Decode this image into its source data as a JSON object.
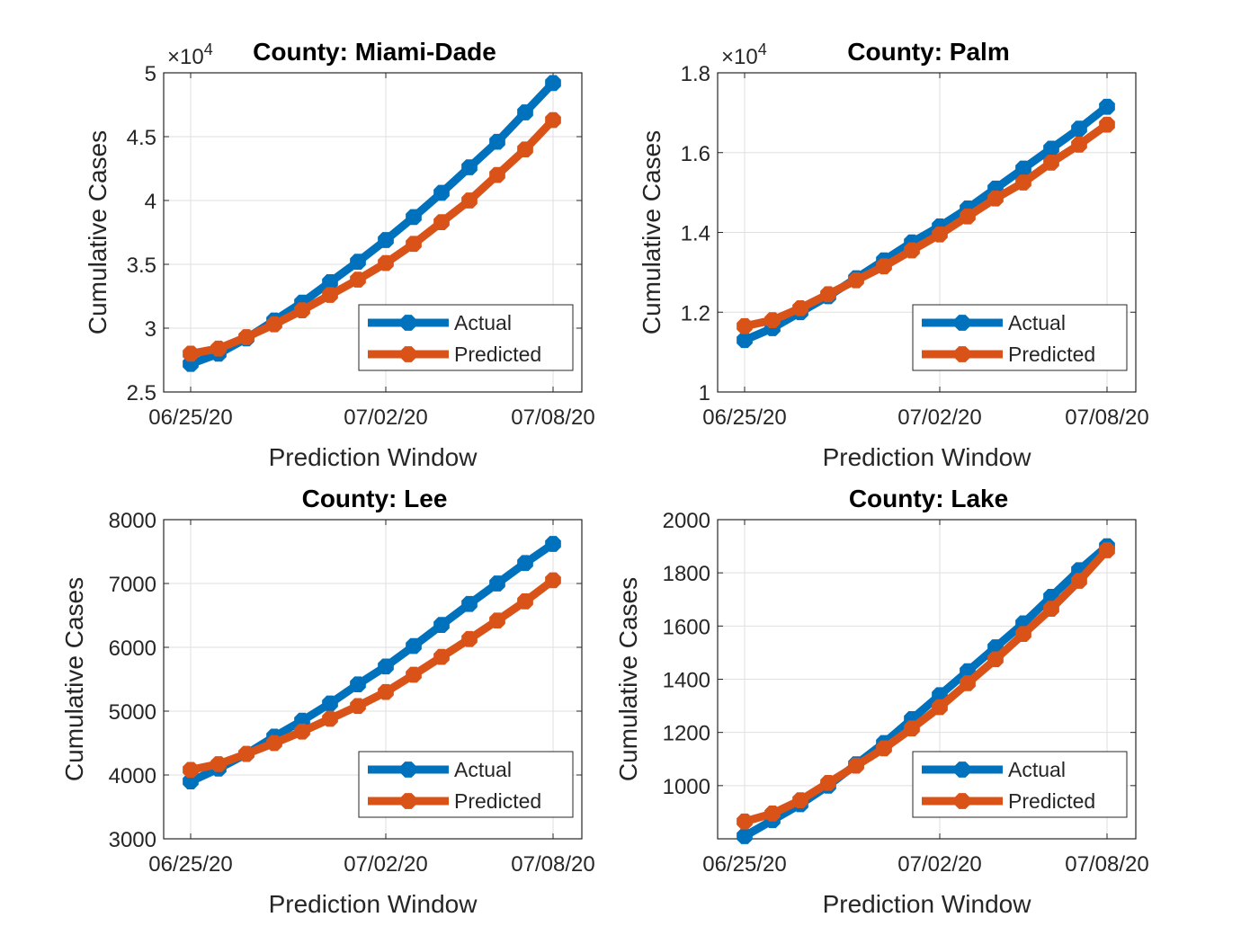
{
  "figure": {
    "xlabel": "Prediction Window",
    "ylabel": "Cumulative Cases"
  },
  "colors": {
    "actual": "#0072BD",
    "predicted": "#D95319",
    "grid": "#DFDFDF",
    "axis": "#262626"
  },
  "chart_data": [
    {
      "type": "line",
      "title": "County: Miami-Dade",
      "xlabel": "Prediction Window",
      "ylabel": "Cumulative Cases",
      "x": [
        "06/25/20",
        "06/26/20",
        "06/27/20",
        "06/28/20",
        "06/29/20",
        "06/30/20",
        "07/01/20",
        "07/02/20",
        "07/03/20",
        "07/04/20",
        "07/05/20",
        "07/06/20",
        "07/07/20",
        "07/08/20"
      ],
      "xticks": [
        "06/25/20",
        "07/02/20",
        "07/08/20"
      ],
      "ylim": [
        25000,
        50000
      ],
      "yticks": [
        25000,
        30000,
        35000,
        40000,
        45000,
        50000
      ],
      "ytick_labels": [
        "2.5",
        "3",
        "3.5",
        "4",
        "4.5",
        "5"
      ],
      "y_exponent_base": "×10",
      "y_exponent_power": "4",
      "grid": true,
      "legend_position": "lower-right",
      "series": [
        {
          "name": "Actual",
          "values": [
            27200,
            28000,
            29200,
            30600,
            32000,
            33600,
            35200,
            36900,
            38700,
            40600,
            42600,
            44600,
            46900,
            49200
          ]
        },
        {
          "name": "Predicted",
          "values": [
            28000,
            28400,
            29300,
            30300,
            31400,
            32600,
            33800,
            35100,
            36600,
            38300,
            40000,
            42000,
            44000,
            46300
          ]
        }
      ]
    },
    {
      "type": "line",
      "title": "County: Palm",
      "xlabel": "Prediction Window",
      "ylabel": "Cumulative Cases",
      "x": [
        "06/25/20",
        "06/26/20",
        "06/27/20",
        "06/28/20",
        "06/29/20",
        "06/30/20",
        "07/01/20",
        "07/02/20",
        "07/03/20",
        "07/04/20",
        "07/05/20",
        "07/06/20",
        "07/07/20",
        "07/08/20"
      ],
      "xticks": [
        "06/25/20",
        "07/02/20",
        "07/08/20"
      ],
      "ylim": [
        10000,
        18000
      ],
      "yticks": [
        10000,
        12000,
        14000,
        16000,
        18000
      ],
      "ytick_labels": [
        "1",
        "1.2",
        "1.4",
        "1.6",
        "1.8"
      ],
      "y_exponent_base": "×10",
      "y_exponent_power": "4",
      "grid": true,
      "legend_position": "lower-right",
      "series": [
        {
          "name": "Actual",
          "values": [
            11300,
            11600,
            12000,
            12400,
            12850,
            13300,
            13750,
            14150,
            14600,
            15100,
            15600,
            16100,
            16600,
            17150
          ]
        },
        {
          "name": "Predicted",
          "values": [
            11650,
            11800,
            12100,
            12450,
            12800,
            13150,
            13550,
            13950,
            14400,
            14850,
            15250,
            15750,
            16200,
            16700
          ]
        }
      ]
    },
    {
      "type": "line",
      "title": "County: Lee",
      "xlabel": "Prediction Window",
      "ylabel": "Cumulative Cases",
      "x": [
        "06/25/20",
        "06/26/20",
        "06/27/20",
        "06/28/20",
        "06/29/20",
        "06/30/20",
        "07/01/20",
        "07/02/20",
        "07/03/20",
        "07/04/20",
        "07/05/20",
        "07/06/20",
        "07/07/20",
        "07/08/20"
      ],
      "xticks": [
        "06/25/20",
        "07/02/20",
        "07/08/20"
      ],
      "ylim": [
        3000,
        8000
      ],
      "yticks": [
        3000,
        4000,
        5000,
        6000,
        7000,
        8000
      ],
      "ytick_labels": [
        "3000",
        "4000",
        "5000",
        "6000",
        "7000",
        "8000"
      ],
      "grid": true,
      "legend_position": "lower-right",
      "series": [
        {
          "name": "Actual",
          "values": [
            3900,
            4100,
            4330,
            4600,
            4850,
            5120,
            5420,
            5700,
            6020,
            6350,
            6680,
            7000,
            7320,
            7620
          ]
        },
        {
          "name": "Predicted",
          "values": [
            4080,
            4170,
            4330,
            4500,
            4680,
            4880,
            5080,
            5300,
            5570,
            5850,
            6130,
            6420,
            6720,
            7050
          ]
        }
      ]
    },
    {
      "type": "line",
      "title": "County: Lake",
      "xlabel": "Prediction Window",
      "ylabel": "Cumulative Cases",
      "x": [
        "06/25/20",
        "06/26/20",
        "06/27/20",
        "06/28/20",
        "06/29/20",
        "06/30/20",
        "07/01/20",
        "07/02/20",
        "07/03/20",
        "07/04/20",
        "07/05/20",
        "07/06/20",
        "07/07/20",
        "07/08/20"
      ],
      "xticks": [
        "06/25/20",
        "07/02/20",
        "07/08/20"
      ],
      "ylim": [
        800,
        2000
      ],
      "yticks": [
        1000,
        1200,
        1400,
        1600,
        1800,
        2000
      ],
      "ytick_labels": [
        "1000",
        "1200",
        "1400",
        "1600",
        "1800",
        "2000"
      ],
      "grid": true,
      "legend_position": "lower-right",
      "series": [
        {
          "name": "Actual",
          "values": [
            810,
            870,
            930,
            1000,
            1080,
            1160,
            1250,
            1340,
            1430,
            1520,
            1610,
            1710,
            1810,
            1900
          ]
        },
        {
          "name": "Predicted",
          "values": [
            865,
            895,
            945,
            1010,
            1075,
            1140,
            1215,
            1295,
            1385,
            1475,
            1570,
            1665,
            1770,
            1885
          ]
        }
      ]
    }
  ]
}
